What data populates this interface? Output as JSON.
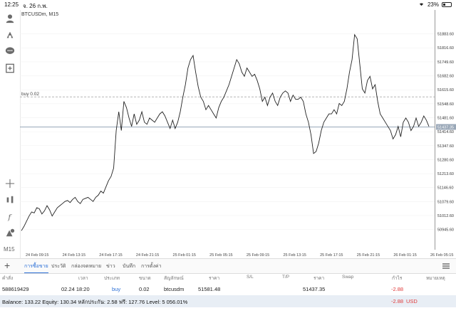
{
  "status": {
    "time": "12:25",
    "date": "จ. 26 ก.พ.",
    "battery": "23%"
  },
  "chart": {
    "title": "BTCUSDm, M15",
    "buy_label": "buy 0.02",
    "current_price": "51437.35"
  },
  "toolbar": {
    "icons": [
      "account-icon",
      "trade-icon",
      "chat-icon",
      "new-order-icon"
    ],
    "bottom_icons": [
      "crosshair-icon",
      "indicators-icon",
      "function-icon",
      "objects-icon"
    ],
    "timeframe": "M15"
  },
  "chart_data": {
    "type": "line",
    "title": "BTCUSDm, M15",
    "price_ticks": [
      "51883.60",
      "51816.60",
      "51749.60",
      "51682.60",
      "51615.60",
      "51548.60",
      "51481.60",
      "51414.60",
      "51347.60",
      "51280.60",
      "51213.60",
      "51146.60",
      "51079.60",
      "51012.60",
      "50945.60"
    ],
    "time_ticks": [
      "24 Feb 09:15",
      "24 Feb 13:15",
      "24 Feb 17:15",
      "24 Feb 21:15",
      "25 Feb 01:15",
      "25 Feb 05:15",
      "25 Feb 09:15",
      "25 Feb 13:15",
      "25 Feb 17:15",
      "25 Feb 21:15",
      "26 Feb 01:15",
      "26 Feb 05:15"
    ],
    "ylim": [
      50900,
      51930
    ],
    "buy_price": 51581.48,
    "current_price": 51437.35,
    "values": [
      50940,
      50960,
      50985,
      51010,
      51030,
      51025,
      51050,
      51045,
      51020,
      51035,
      51060,
      51040,
      51010,
      51030,
      51050,
      51060,
      51070,
      51080,
      51085,
      51075,
      51090,
      51100,
      51080,
      51070,
      51090,
      51095,
      51100,
      51090,
      51080,
      51100,
      51110,
      51130,
      51120,
      51150,
      51180,
      51200,
      51240,
      51420,
      51510,
      51420,
      51560,
      51530,
      51480,
      51440,
      51500,
      51450,
      51470,
      51510,
      51460,
      51450,
      51480,
      51470,
      51460,
      51480,
      51500,
      51510,
      51490,
      51460,
      51430,
      51470,
      51430,
      51460,
      51510,
      51580,
      51640,
      51720,
      51760,
      51780,
      51700,
      51630,
      51580,
      51560,
      51520,
      51540,
      51520,
      51500,
      51480,
      51530,
      51560,
      51580,
      51610,
      51640,
      51680,
      51720,
      51760,
      51740,
      51700,
      51680,
      51720,
      51700,
      51680,
      51690,
      51660,
      51620,
      51560,
      51580,
      51540,
      51580,
      51600,
      51560,
      51540,
      51580,
      51600,
      51610,
      51600,
      51560,
      51590,
      51570,
      51570,
      51580,
      51560,
      51500,
      51460,
      51400,
      51310,
      51320,
      51360,
      51420,
      51460,
      51480,
      51500,
      51500,
      51520,
      51500,
      51550,
      51540,
      51560,
      51620,
      51700,
      51760,
      51880,
      51860,
      51740,
      51620,
      51600,
      51660,
      51680,
      51620,
      51640,
      51560,
      51500,
      51480,
      51460,
      51440,
      51420,
      51380,
      51400,
      51440,
      51390,
      51460,
      51480,
      51460,
      51420,
      51440,
      51480,
      51440,
      51460,
      51490,
      51470,
      51440
    ]
  },
  "tabs": [
    "การซื้อขาย",
    "ประวัติ",
    "กล่องจดหมาย",
    "ข่าว",
    "บันทึก",
    "การตั้งค่า"
  ],
  "table": {
    "headers": [
      "คำสั่ง",
      "เวลา",
      "ประเภท",
      "ขนาด",
      "สัญลักษณ์",
      "ราคา",
      "S/L",
      "T/P",
      "ราคา",
      "Swap",
      "กำไร",
      "หมายเหตุ"
    ],
    "row": {
      "order": "588619429",
      "time": "02.24 18:20",
      "type": "buy",
      "size": "0.02",
      "symbol": "btcusdm",
      "price": "51581.48",
      "cur_price": "51437.35",
      "profit": "-2.88"
    }
  },
  "footer": {
    "summary": "Balance: 133.22 Equity: 130.34 หลักประกัน: 2.58 ฟรี: 127.76 Level: 5 056.01%",
    "profit": "-2.88",
    "currency": "USD"
  },
  "colors": {
    "accent": "#2b6fd6",
    "loss": "#e03b3b",
    "line": "#222222",
    "footer_bg": "#e8eef5"
  }
}
